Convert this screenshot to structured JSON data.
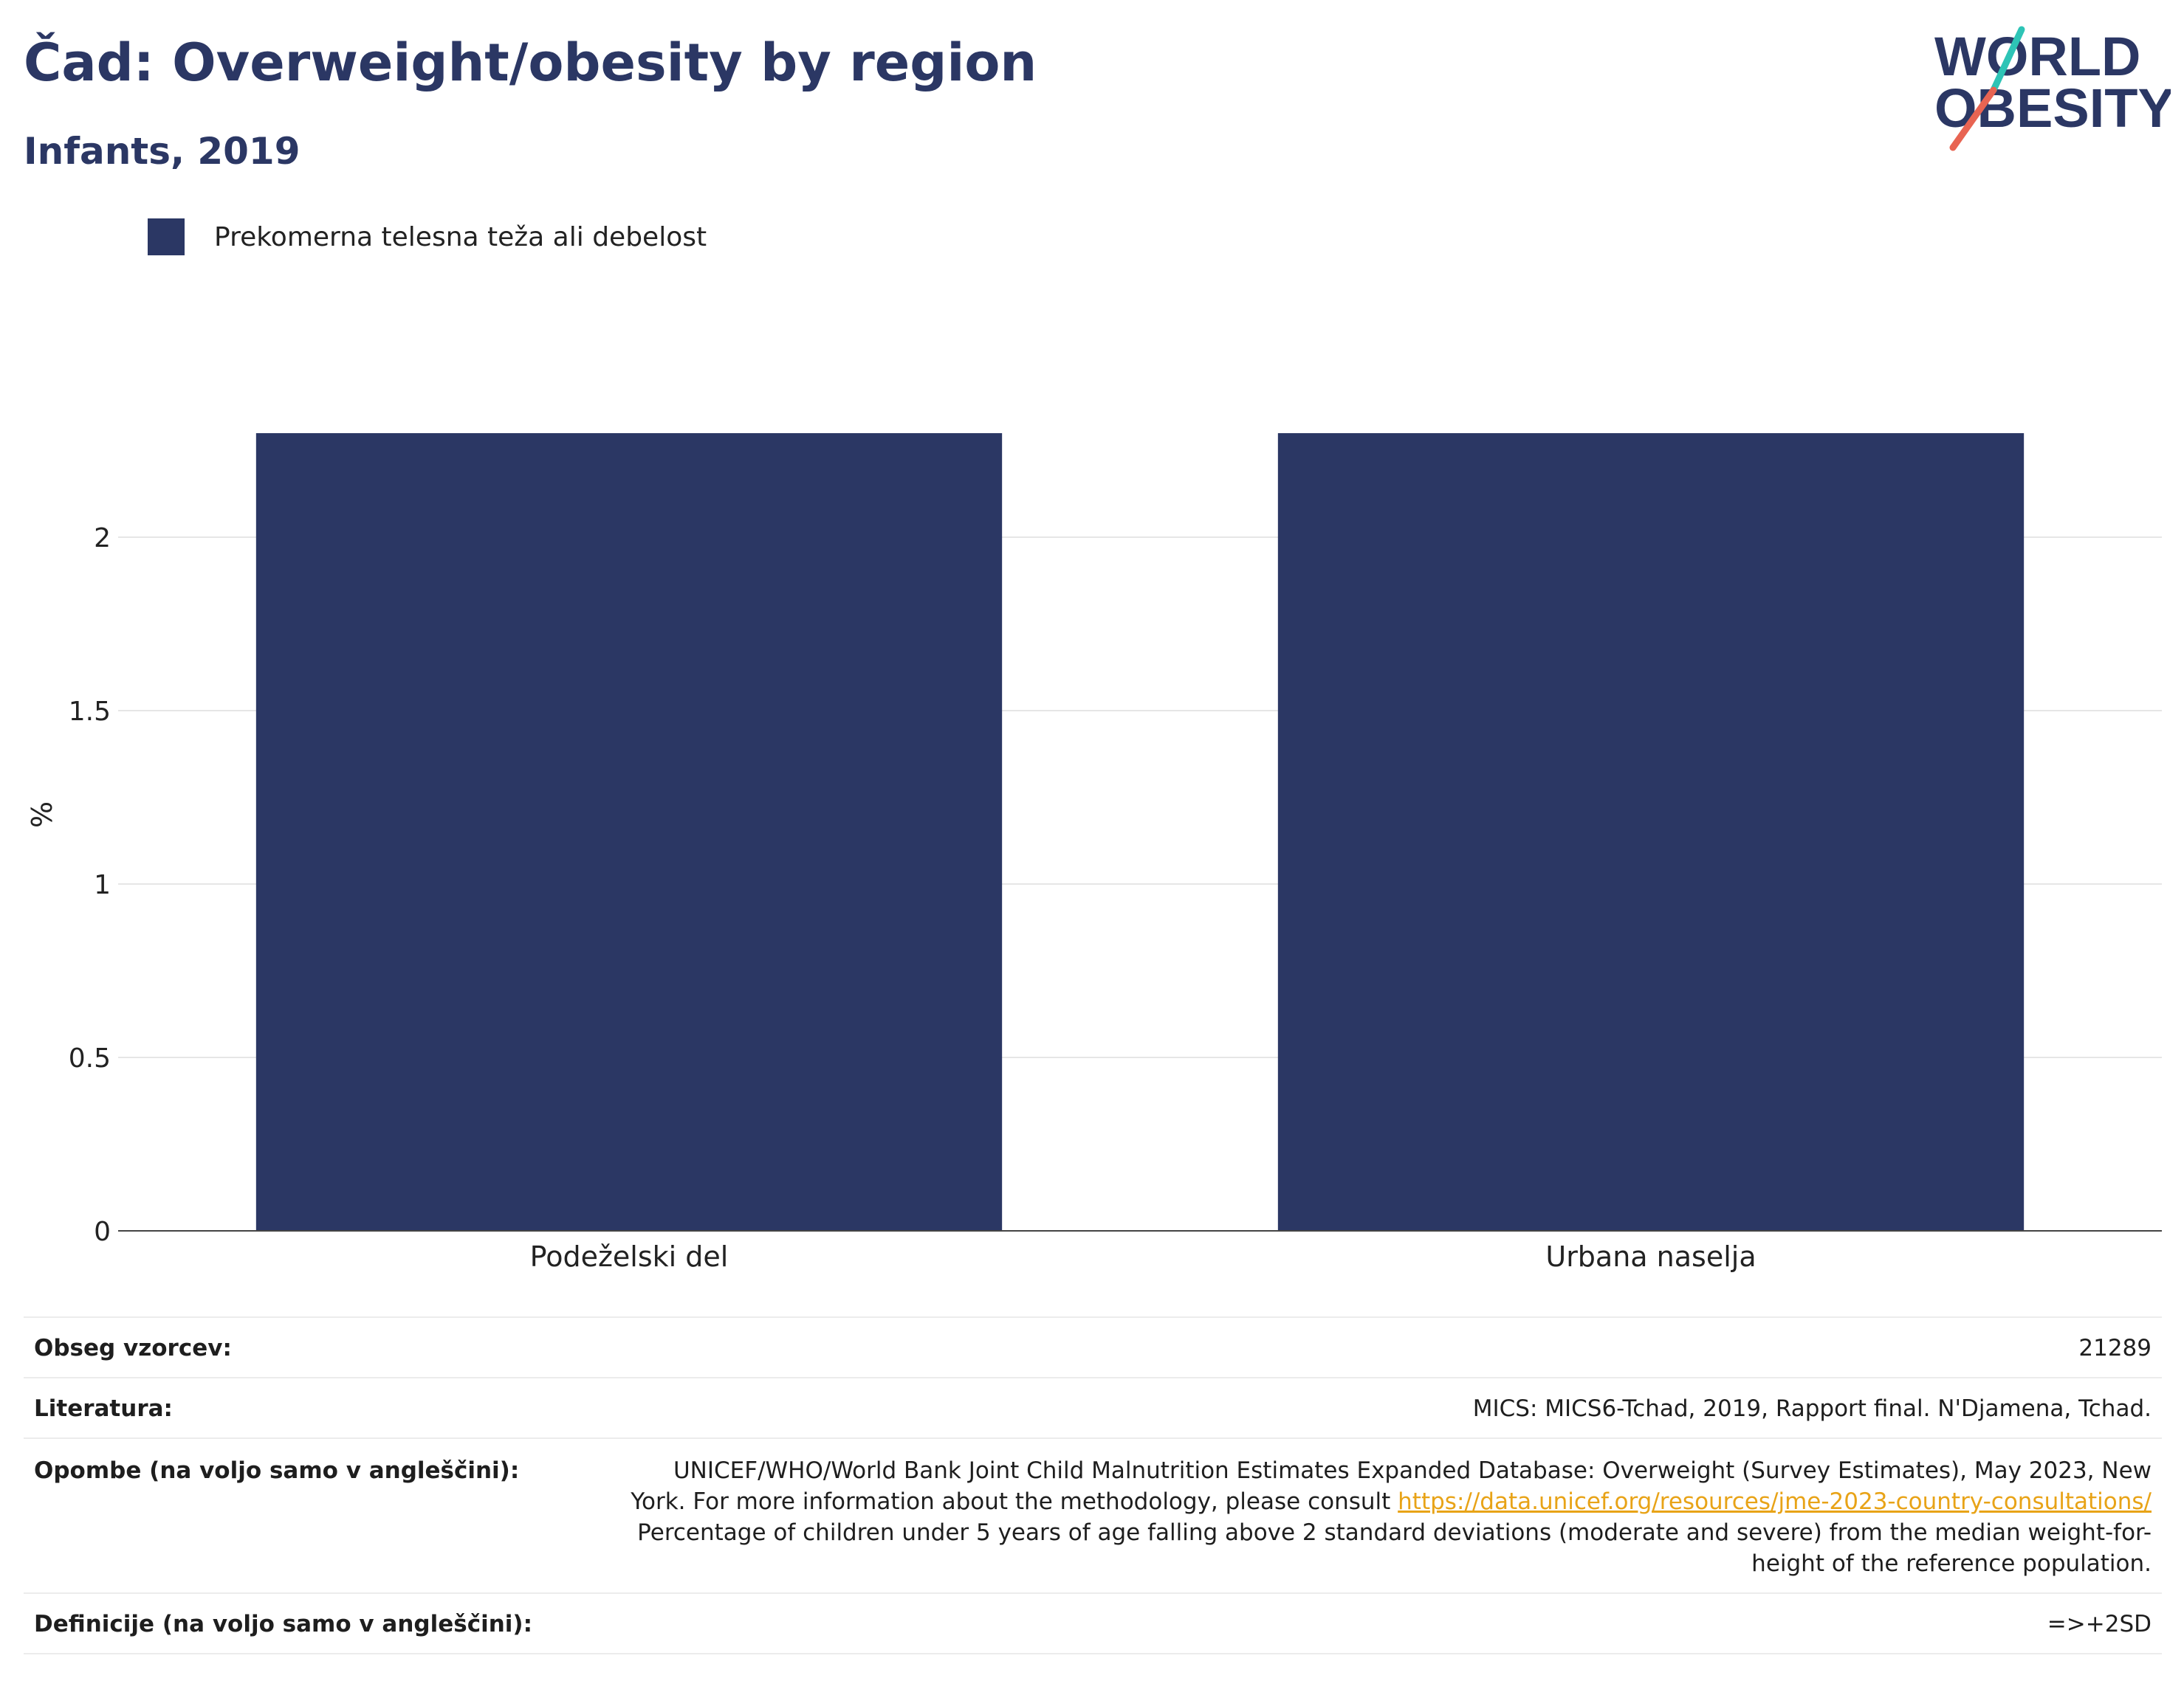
{
  "header": {
    "title": "Čad: Overweight/obesity by region",
    "subtitle": "Infants, 2019"
  },
  "logo": {
    "line1": "WORLD",
    "line2": "OBESITY"
  },
  "colors": {
    "bar": "#2b3764",
    "title": "#2b3764",
    "link": "#e8a317",
    "logo_teal": "#2ec4b6",
    "logo_red": "#e86452"
  },
  "chart_data": {
    "type": "bar",
    "categories": [
      "Podeželski del",
      "Urbana naselja"
    ],
    "series": [
      {
        "name": "Prekomerna telesna teža ali debelost",
        "values": [
          2.3,
          2.3
        ]
      }
    ],
    "ylabel": "%",
    "xlabel": "",
    "ylim": [
      0,
      2.4
    ],
    "yticks": [
      0,
      0.5,
      1,
      1.5,
      2
    ],
    "yticklabels": [
      "0",
      "0.5",
      "1",
      "1.5",
      "2"
    ],
    "grid": true,
    "legend_position": "top-left"
  },
  "meta": [
    {
      "key": "Obseg vzorcev:",
      "value": "21289"
    },
    {
      "key": "Literatura:",
      "value": "MICS: MICS6-Tchad, 2019, Rapport final. N'Djamena, Tchad."
    },
    {
      "key": "Opombe (na voljo samo v angleščini):",
      "value": "UNICEF/WHO/World Bank Joint Child Malnutrition Estimates Expanded Database: Overweight (Survey Estimates), May 2023, New York. For more information about the methodology, please consult",
      "link": "https://data.unicef.org/resources/jme-2023-country-consultations/",
      "value2": "Percentage of children under 5 years of age falling above 2 standard deviations (moderate and severe) from the median weight-for-height of the reference population."
    },
    {
      "key": "Definicije (na voljo samo v angleščini):",
      "value": "=>+2SD"
    }
  ]
}
